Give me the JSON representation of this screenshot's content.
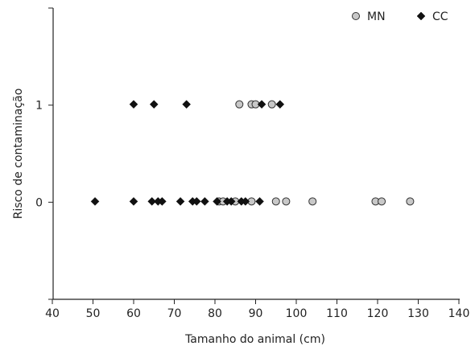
{
  "chart_data": {
    "type": "scatter",
    "title": "",
    "xlabel": "Tamanho do animal (cm)",
    "ylabel": "Risco de contaminação",
    "xlim": [
      40,
      140
    ],
    "ylim": [
      -1,
      2
    ],
    "x_ticks": [
      "40",
      "50",
      "60",
      "70",
      "80",
      "90",
      "100",
      "110",
      "120",
      "130",
      "140"
    ],
    "y_ticks": [
      "0",
      "1"
    ],
    "y_tick_values": [
      0,
      1
    ],
    "grid": false,
    "legend_position": "top-right",
    "series": [
      {
        "name": "MN",
        "marker": "circle",
        "color": "#c8c8c8",
        "stroke": "#333333",
        "points": [
          {
            "x": 86,
            "y": 1
          },
          {
            "x": 89,
            "y": 1
          },
          {
            "x": 90,
            "y": 1
          },
          {
            "x": 94,
            "y": 1
          },
          {
            "x": 81,
            "y": 0
          },
          {
            "x": 82,
            "y": 0
          },
          {
            "x": 85,
            "y": 0
          },
          {
            "x": 89,
            "y": 0
          },
          {
            "x": 95,
            "y": 0
          },
          {
            "x": 97.5,
            "y": 0
          },
          {
            "x": 104,
            "y": 0
          },
          {
            "x": 119.5,
            "y": 0
          },
          {
            "x": 121,
            "y": 0
          },
          {
            "x": 128,
            "y": 0
          }
        ]
      },
      {
        "name": "CC",
        "marker": "diamond",
        "color": "#111111",
        "stroke": "#111111",
        "points": [
          {
            "x": 60,
            "y": 1
          },
          {
            "x": 65,
            "y": 1
          },
          {
            "x": 73,
            "y": 1
          },
          {
            "x": 91.5,
            "y": 1
          },
          {
            "x": 96,
            "y": 1
          },
          {
            "x": 50.5,
            "y": 0
          },
          {
            "x": 60,
            "y": 0
          },
          {
            "x": 64.5,
            "y": 0
          },
          {
            "x": 66,
            "y": 0
          },
          {
            "x": 67,
            "y": 0
          },
          {
            "x": 71.5,
            "y": 0
          },
          {
            "x": 74.5,
            "y": 0
          },
          {
            "x": 75.5,
            "y": 0
          },
          {
            "x": 77.5,
            "y": 0
          },
          {
            "x": 80.5,
            "y": 0
          },
          {
            "x": 83,
            "y": 0
          },
          {
            "x": 84,
            "y": 0
          },
          {
            "x": 86.5,
            "y": 0
          },
          {
            "x": 87.5,
            "y": 0
          },
          {
            "x": 91,
            "y": 0
          }
        ]
      }
    ]
  }
}
